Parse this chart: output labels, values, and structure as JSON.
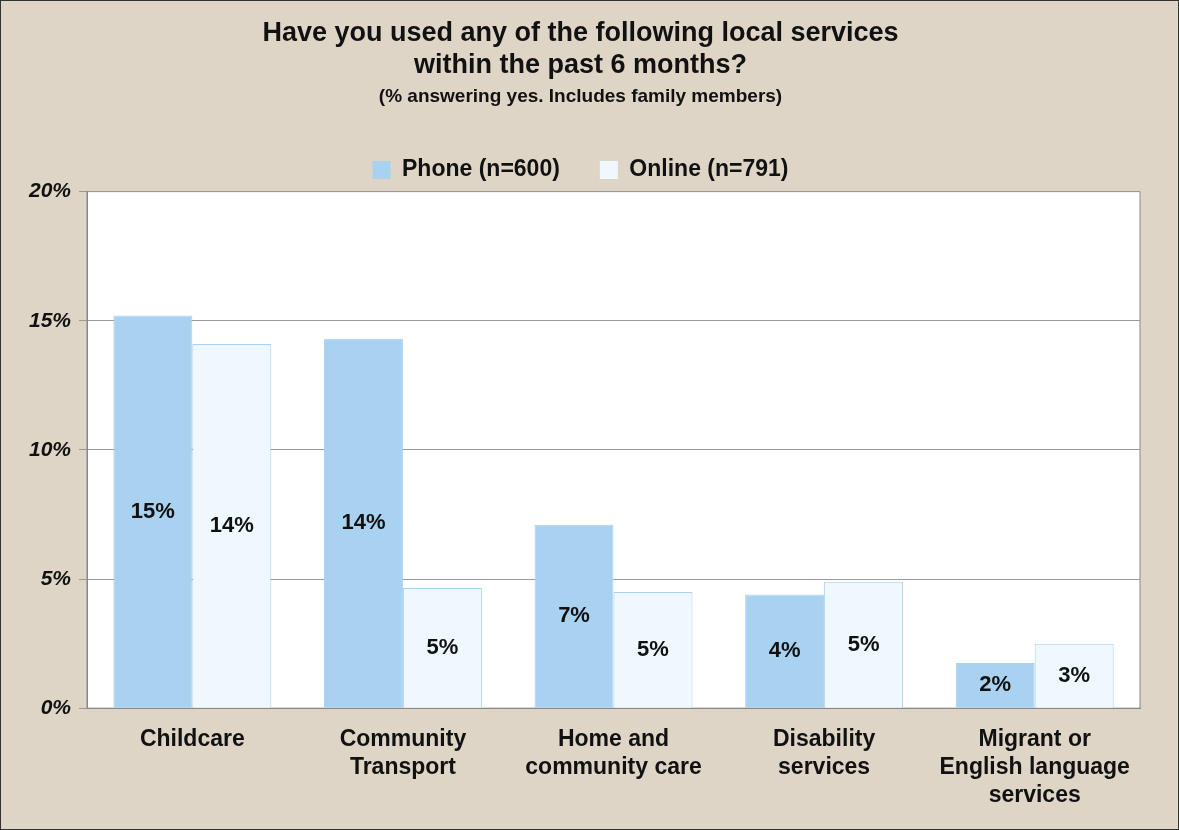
{
  "chart_data": {
    "type": "bar",
    "title": "Have you used any of the following local services\nwithin the past 6 months?",
    "subtitle": "(% answering yes. Includes family members)",
    "categories": [
      "Childcare",
      "Community Transport",
      "Home and community care",
      "Disability services",
      "Migrant or English language services"
    ],
    "series": [
      {
        "name": "Phone (n=600)",
        "color": "#a9d1f0",
        "values": [
          15.2,
          14.3,
          7.1,
          4.4,
          1.75
        ],
        "value_labels": [
          "15%",
          "14%",
          "7%",
          "4%",
          "2%"
        ]
      },
      {
        "name": "Online (n=791)",
        "color": "#eef8fe",
        "values": [
          14.1,
          4.65,
          4.5,
          4.9,
          2.5
        ],
        "value_labels": [
          "14%",
          "5%",
          "5%",
          "5%",
          "3%"
        ]
      }
    ],
    "ylim": [
      0,
      20
    ],
    "yticks": [
      {
        "value": 0,
        "label": "0%"
      },
      {
        "value": 5,
        "label": "5%"
      },
      {
        "value": 10,
        "label": "10%"
      },
      {
        "value": 15,
        "label": "15%"
      },
      {
        "value": 20,
        "label": "20%"
      }
    ],
    "grid": "y",
    "legend": "top"
  }
}
